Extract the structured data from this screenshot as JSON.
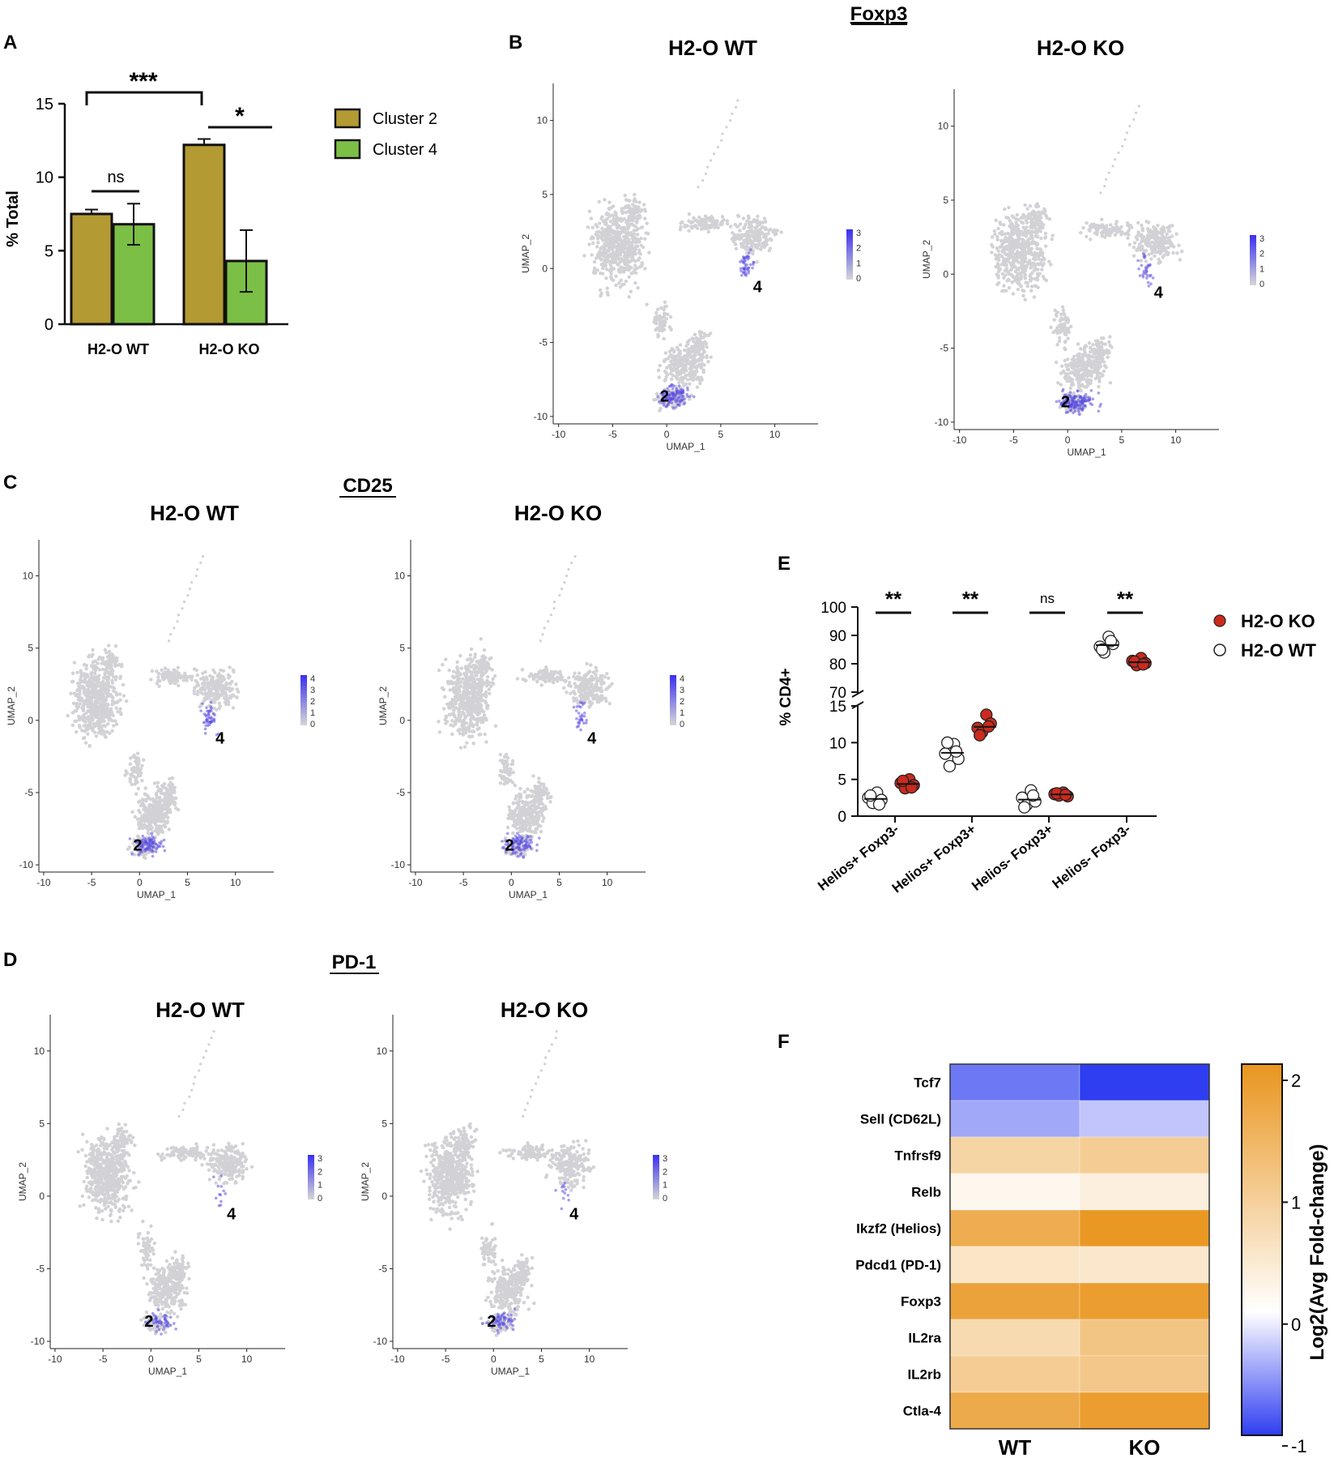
{
  "panel_letters": {
    "A": "A",
    "B": "B",
    "C": "C",
    "D": "D",
    "E": "E",
    "F": "F"
  },
  "colors": {
    "cluster2": "#b49a33",
    "cluster4": "#7cbf46",
    "ko_dot": "#cc2a1e",
    "umap_grey": "#d2d2d6",
    "umap_blue": "#5b4fe0",
    "low": "#2f3ef0",
    "mid": "#ffffff",
    "high": "#e9951e"
  },
  "chart_data": [
    {
      "id": "A",
      "type": "bar",
      "title": "",
      "xlabel": "",
      "ylabel": "% Total",
      "categories": [
        "H2-O WT",
        "H2-O KO"
      ],
      "series": [
        {
          "name": "Cluster 2",
          "values": [
            7.5,
            12.2
          ],
          "errors": [
            0.3,
            0.4
          ]
        },
        {
          "name": "Cluster 4",
          "values": [
            6.8,
            4.3
          ],
          "errors": [
            1.4,
            2.1
          ]
        }
      ],
      "ylim": [
        0,
        15
      ],
      "yticks": [
        "0",
        "5",
        "10",
        "15"
      ],
      "annotations": [
        "***",
        "ns",
        "*"
      ],
      "legend": "right"
    },
    {
      "id": "B",
      "type": "scatter",
      "title": "Foxp3",
      "panels": [
        {
          "title": "H2-O WT"
        },
        {
          "title": "H2-O KO"
        }
      ],
      "xlabel": "UMAP_1",
      "ylabel": "UMAP_2",
      "xticks": [
        "-10",
        "-5",
        "0",
        "5",
        "10"
      ],
      "yticks": [
        "-10",
        "-5",
        "0",
        "5",
        "10"
      ],
      "colorbar": [
        "3",
        "2",
        "1",
        "0"
      ],
      "cluster_labels": [
        "4",
        "2"
      ]
    },
    {
      "id": "C",
      "type": "scatter",
      "title": "CD25",
      "panels": [
        {
          "title": "H2-O WT"
        },
        {
          "title": "H2-O KO"
        }
      ],
      "xlabel": "UMAP_1",
      "ylabel": "UMAP_2",
      "xticks": [
        "-10",
        "-5",
        "0",
        "5",
        "10"
      ],
      "yticks": [
        "-10",
        "-5",
        "0",
        "5",
        "10"
      ],
      "colorbar": [
        "4",
        "3",
        "2",
        "1",
        "0"
      ],
      "cluster_labels": [
        "4",
        "2"
      ]
    },
    {
      "id": "D",
      "type": "scatter",
      "title": "PD-1",
      "panels": [
        {
          "title": "H2-O WT"
        },
        {
          "title": "H2-O KO"
        }
      ],
      "xlabel": "UMAP_1",
      "ylabel": "UMAP_2",
      "xticks": [
        "-10",
        "-5",
        "0",
        "5",
        "10"
      ],
      "yticks": [
        "-10",
        "-5",
        "0",
        "5",
        "10"
      ],
      "colorbar": [
        "3",
        "2",
        "1",
        "0"
      ],
      "cluster_labels": [
        "4",
        "2"
      ]
    },
    {
      "id": "E",
      "type": "scatter",
      "ylabel": "% CD4+",
      "categories": [
        "Helios+ Foxp3-",
        "Helios+ Foxp3+",
        "Helios- Foxp3+",
        "Helios- Foxp3-"
      ],
      "yticks_upper": [
        "70",
        "80",
        "90",
        "100"
      ],
      "yticks_lower": [
        "0",
        "5",
        "10",
        "15"
      ],
      "series": [
        {
          "name": "H2-O KO",
          "points": [
            [
              4.5,
              3.8,
              5.0,
              4.2,
              4.8,
              3.9
            ],
            [
              12.0,
              11.4,
              13.8,
              12.6,
              11.0,
              12.2
            ],
            [
              3.0,
              2.8,
              3.2,
              2.7,
              3.1,
              2.9
            ],
            [
              81.0,
              79.5,
              82.0,
              80.2,
              80.8,
              79.8
            ]
          ]
        },
        {
          "name": "H2-O WT",
          "points": [
            [
              2.5,
              1.8,
              3.2,
              2.2,
              2.8,
              1.6
            ],
            [
              8.5,
              6.8,
              9.8,
              7.8,
              10.0,
              8.8
            ],
            [
              2.5,
              1.5,
              3.5,
              2.0,
              1.2,
              2.8
            ],
            [
              86.0,
              84.0,
              89.5,
              87.0,
              85.0,
              88.0
            ]
          ]
        }
      ],
      "annotations": [
        "**",
        "**",
        "ns",
        "**"
      ],
      "legend": "right"
    },
    {
      "id": "F",
      "type": "heatmap",
      "rows": [
        "Tcf7",
        "Sell (CD62L)",
        "Tnfrsf9",
        "Relb",
        "Ikzf2 (Helios)",
        "Pdcd1 (PD-1)",
        "Foxp3",
        "IL2ra",
        "IL2rb",
        "Ctla-4"
      ],
      "columns": [
        "WT",
        "KO"
      ],
      "values": [
        [
          -0.7,
          -1.0
        ],
        [
          -0.45,
          -0.3
        ],
        [
          0.8,
          0.95
        ],
        [
          0.15,
          0.3
        ],
        [
          1.55,
          1.95
        ],
        [
          0.5,
          0.45
        ],
        [
          1.75,
          1.85
        ],
        [
          0.7,
          1.1
        ],
        [
          0.95,
          1.05
        ],
        [
          1.6,
          1.85
        ]
      ],
      "colorbar_label": "Log2(Avg Fold-change)",
      "colorbar_ticks": [
        "2",
        "1",
        "0",
        "-1"
      ],
      "clim": [
        -1,
        2
      ]
    }
  ]
}
